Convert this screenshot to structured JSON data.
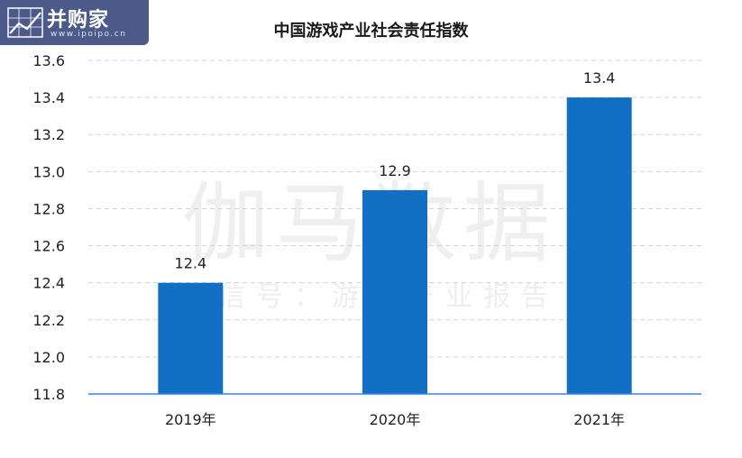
{
  "logo": {
    "name": "并购家",
    "url": "www.ipoipo.cn"
  },
  "watermark": {
    "main": "伽马数据",
    "sub": "微信号：游戏产业报告"
  },
  "colors": {
    "bar": "#1170c4",
    "axis": "#3a86d6",
    "grid": "#d3d3d3",
    "logo_bg": "#4b5a88"
  },
  "chart_data": {
    "type": "bar",
    "title": "中国游戏产业社会责任指数",
    "categories": [
      "2019年",
      "2020年",
      "2021年"
    ],
    "values": [
      12.4,
      12.9,
      13.4
    ],
    "value_labels": [
      "12.4",
      "12.9",
      "13.4"
    ],
    "xlabel": "",
    "ylabel": "",
    "ylim": [
      11.8,
      13.6
    ],
    "yticks": [
      "11.8",
      "12.0",
      "12.2",
      "12.4",
      "12.6",
      "12.8",
      "13.0",
      "13.2",
      "13.4",
      "13.6"
    ],
    "grid": true,
    "grid_style": "dashed"
  }
}
